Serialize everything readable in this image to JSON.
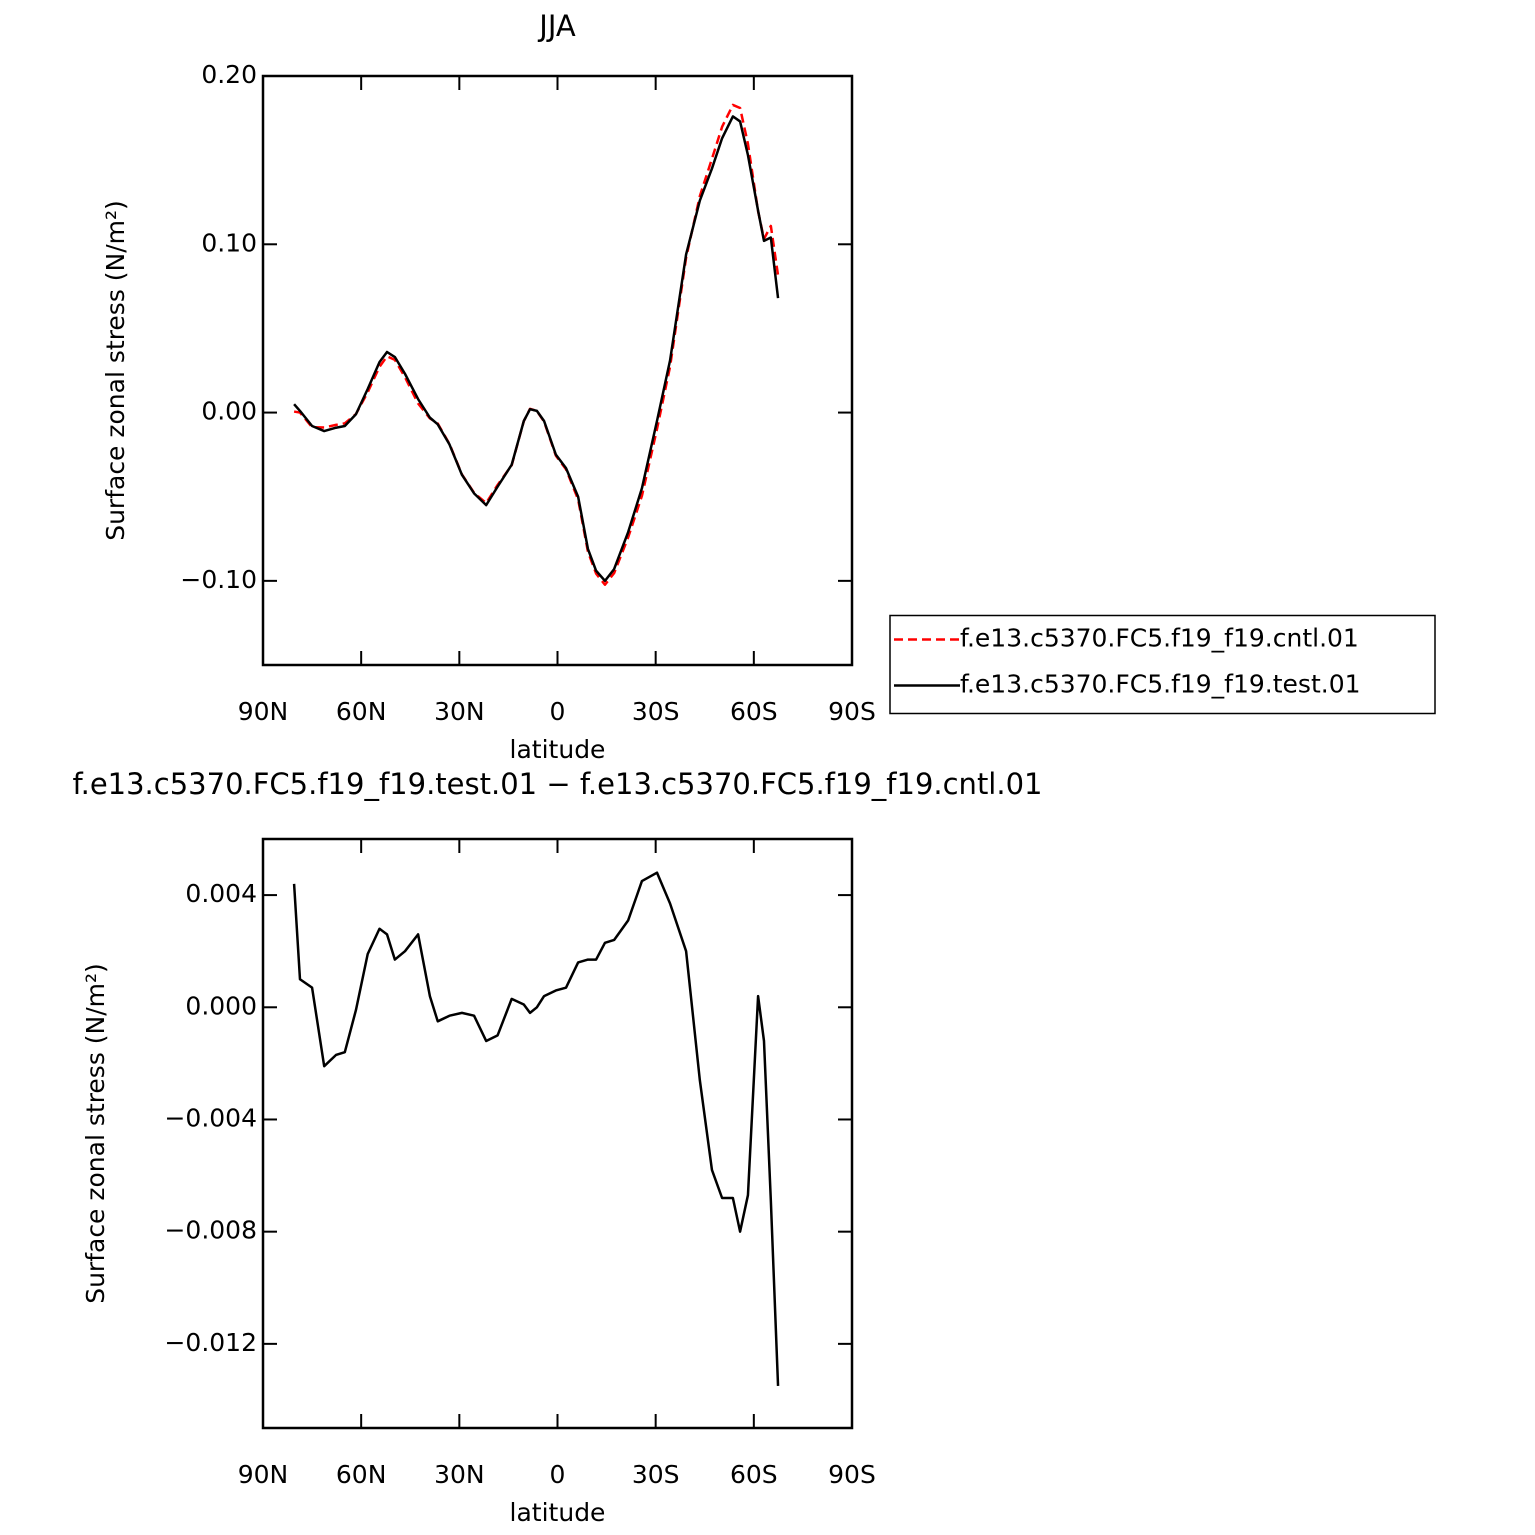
{
  "chart_data": [
    {
      "type": "line",
      "title": "JJA",
      "xlabel": "latitude",
      "ylabel": "Surface zonal stress (N/m²)",
      "x": [
        80.5,
        78.7,
        75,
        71.3,
        67.7,
        65,
        61.6,
        58,
        54.4,
        52.1,
        49.7,
        46.6,
        42.6,
        39,
        36.6,
        33,
        29.2,
        25.5,
        21.8,
        18.3,
        14,
        10.3,
        8.4,
        6.3,
        4.1,
        0.5,
        -2.6,
        -6.3,
        -9.3,
        -11.8,
        -14.5,
        -17.3,
        -21.6,
        -25.8,
        -30.4,
        -34.4,
        -39.3,
        -43.5,
        -47.2,
        -50.3,
        -53.6,
        -55.8,
        -58.2,
        -61.3,
        -63.1,
        -65.2,
        -67.4
      ],
      "xlim": [
        90,
        -90
      ],
      "xticks": [
        {
          "value": 90,
          "label": "90N"
        },
        {
          "value": 60,
          "label": "60N"
        },
        {
          "value": 30,
          "label": "30N"
        },
        0,
        {
          "value": -30,
          "label": "30S"
        },
        {
          "value": -60,
          "label": "60S"
        },
        {
          "value": -90,
          "label": "90S"
        }
      ],
      "ylim": [
        -0.15,
        0.2
      ],
      "yticks": [
        {
          "value": 0.2,
          "label": "0.20"
        },
        {
          "value": 0.1,
          "label": "0.10"
        },
        {
          "value": 0,
          "label": "0.00"
        },
        {
          "value": -0.1,
          "label": "−0.10"
        }
      ],
      "legend": "right",
      "series": [
        {
          "name": "f.e13.c5370.FC5.f19_f19.cntl.01",
          "color": "#ff0000",
          "linestyle": "dashed",
          "values": [
            0.0006,
            0.0,
            -0.0087,
            -0.0089,
            -0.0073,
            -0.0064,
            -0.0009,
            0.0121,
            0.0272,
            0.0334,
            0.0313,
            0.021,
            0.0054,
            -0.0034,
            -0.0065,
            -0.0187,
            -0.0368,
            -0.0477,
            -0.0538,
            -0.043,
            -0.0313,
            -0.0051,
            0.0022,
            0.001,
            -0.0054,
            -0.0256,
            -0.0337,
            -0.0516,
            -0.0827,
            -0.0957,
            -0.1023,
            -0.0954,
            -0.0741,
            -0.0495,
            -0.0098,
            0.0273,
            0.092,
            0.1286,
            0.1508,
            0.1698,
            0.1828,
            0.181,
            0.1597,
            0.1196,
            0.1032,
            0.1109,
            0.0815
          ]
        },
        {
          "name": "f.e13.c5370.FC5.f19_f19.test.01",
          "color": "#000000",
          "linestyle": "solid",
          "values": [
            0.005,
            0.001,
            -0.008,
            -0.011,
            -0.009,
            -0.008,
            -0.001,
            0.014,
            0.03,
            0.036,
            0.033,
            0.023,
            0.008,
            -0.003,
            -0.007,
            -0.019,
            -0.037,
            -0.048,
            -0.055,
            -0.044,
            -0.031,
            -0.005,
            0.002,
            0.001,
            -0.005,
            -0.025,
            -0.033,
            -0.05,
            -0.081,
            -0.094,
            -0.1,
            -0.093,
            -0.071,
            -0.045,
            -0.005,
            0.031,
            0.094,
            0.126,
            0.145,
            0.163,
            0.176,
            0.173,
            0.153,
            0.12,
            0.102,
            0.104,
            0.068
          ]
        }
      ]
    },
    {
      "type": "line",
      "title": "f.e13.c5370.FC5.f19_f19.test.01 − f.e13.c5370.FC5.f19_f19.cntl.01",
      "xlabel": "latitude",
      "ylabel": "Surface zonal stress (N/m²)",
      "x": [
        80.5,
        78.7,
        75,
        71.3,
        67.7,
        65,
        61.6,
        58,
        54.4,
        52.1,
        49.7,
        46.6,
        42.6,
        39,
        36.6,
        33,
        29.2,
        25.5,
        21.8,
        18.3,
        14,
        10.3,
        8.4,
        6.3,
        4.1,
        0.5,
        -2.6,
        -6.3,
        -9.3,
        -11.8,
        -14.5,
        -17.3,
        -21.6,
        -25.8,
        -30.4,
        -34.4,
        -39.3,
        -43.5,
        -47.2,
        -50.3,
        -53.6,
        -55.8,
        -58.2,
        -61.3,
        -63.1,
        -65.2,
        -67.4
      ],
      "xlim": [
        90,
        -90
      ],
      "xticks": [
        {
          "value": 90,
          "label": "90N"
        },
        {
          "value": 60,
          "label": "60N"
        },
        {
          "value": 30,
          "label": "30N"
        },
        0,
        {
          "value": -30,
          "label": "30S"
        },
        {
          "value": -60,
          "label": "60S"
        },
        {
          "value": -90,
          "label": "90S"
        }
      ],
      "ylim": [
        -0.015,
        0.006
      ],
      "yticks": [
        0.004,
        {
          "value": 0,
          "label": "0.000"
        },
        {
          "value": -0.004,
          "label": "−0.004"
        },
        {
          "value": -0.008,
          "label": "−0.008"
        },
        {
          "value": -0.012,
          "label": "−0.012"
        }
      ],
      "series": [
        {
          "color": "#000000",
          "linestyle": "solid",
          "values": [
            0.0044,
            0.001,
            0.0007,
            -0.0021,
            -0.0017,
            -0.0016,
            -0.0001,
            0.0019,
            0.0028,
            0.0026,
            0.0017,
            0.002,
            0.0026,
            0.0004,
            -0.0005,
            -0.0003,
            -0.0002,
            -0.0003,
            -0.0012,
            -0.001,
            0.0003,
            0.0001,
            -0.0002,
            0,
            0.0004,
            0.0006,
            0.0007,
            0.0016,
            0.0017,
            0.0017,
            0.0023,
            0.0024,
            0.0031,
            0.0045,
            0.0048,
            0.0037,
            0.002,
            -0.0026,
            -0.0058,
            -0.0068,
            -0.0068,
            -0.008,
            -0.0067,
            0.0004,
            -0.0012,
            -0.0069,
            -0.0135
          ]
        }
      ]
    }
  ]
}
